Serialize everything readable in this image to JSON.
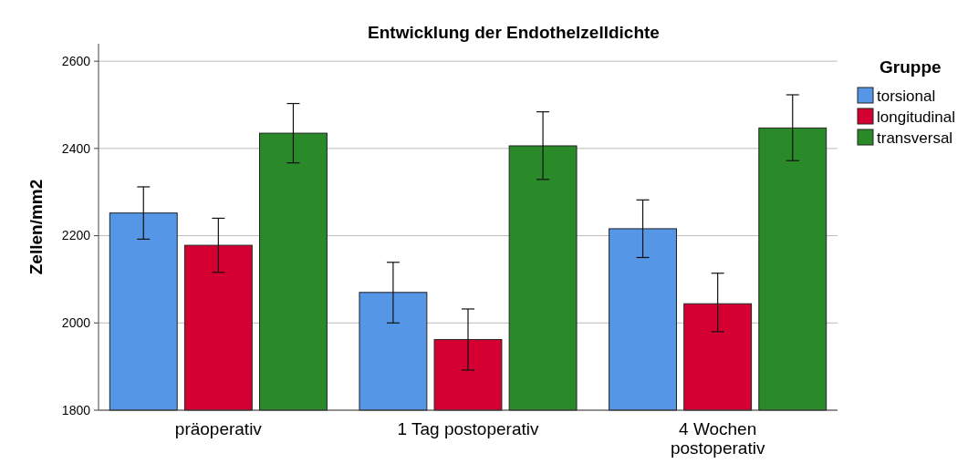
{
  "chart_data": {
    "type": "bar",
    "title": "Entwicklung der Endothelzelldichte",
    "ylabel": "Zellen/mm2",
    "legend_title": "Gruppe",
    "categories": [
      "präoperativ",
      "1 Tag postoperativ",
      "4 Wochen postoperativ"
    ],
    "series": [
      {
        "name": "torsional",
        "color": "#5596e6",
        "values": [
          2252,
          2070,
          2216
        ],
        "errors": [
          [
            2192,
            2312
          ],
          [
            2000,
            2139
          ],
          [
            2150,
            2282
          ]
        ]
      },
      {
        "name": "longitudinal",
        "color": "#d50032",
        "values": [
          2178,
          1962,
          2044
        ],
        "errors": [
          [
            2116,
            2240
          ],
          [
            1892,
            2032
          ],
          [
            1980,
            2114
          ]
        ]
      },
      {
        "name": "transversal",
        "color": "#2a8a2a",
        "values": [
          2435,
          2406,
          2447
        ],
        "errors": [
          [
            2367,
            2503
          ],
          [
            2329,
            2484
          ],
          [
            2372,
            2523
          ]
        ]
      }
    ],
    "ylim": [
      1800,
      2640
    ],
    "yticks": [
      1800,
      2000,
      2200,
      2400,
      2600
    ],
    "grid": "y",
    "legend": "right"
  }
}
